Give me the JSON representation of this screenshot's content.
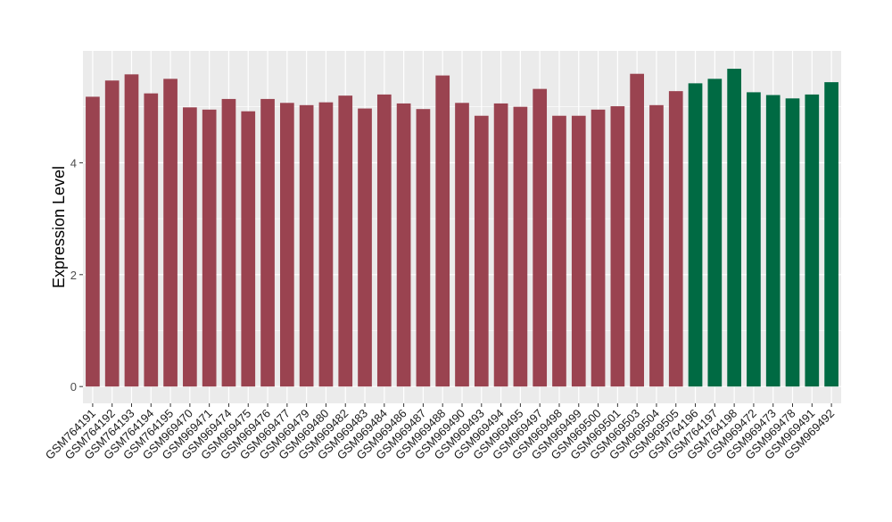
{
  "chart_data": {
    "type": "bar",
    "title": "",
    "xlabel": "",
    "ylabel": "Expression Level",
    "ylim": [
      -0.3,
      6.0
    ],
    "yticks": [
      0,
      2,
      4
    ],
    "grid": true,
    "categories": [
      "GSM764191",
      "GSM764192",
      "GSM764193",
      "GSM764194",
      "GSM764195",
      "GSM969470",
      "GSM969471",
      "GSM969474",
      "GSM969475",
      "GSM969476",
      "GSM969477",
      "GSM969479",
      "GSM969480",
      "GSM969482",
      "GSM969483",
      "GSM969484",
      "GSM969486",
      "GSM969487",
      "GSM969488",
      "GSM969490",
      "GSM969493",
      "GSM969494",
      "GSM969495",
      "GSM969497",
      "GSM969498",
      "GSM969499",
      "GSM969500",
      "GSM969501",
      "GSM969503",
      "GSM969504",
      "GSM969505",
      "GSM764196",
      "GSM764197",
      "GSM764198",
      "GSM969472",
      "GSM969473",
      "GSM969478",
      "GSM969491",
      "GSM969492"
    ],
    "values": [
      5.18,
      5.47,
      5.58,
      5.24,
      5.5,
      4.99,
      4.95,
      5.14,
      4.92,
      5.14,
      5.07,
      5.03,
      5.08,
      5.2,
      4.97,
      5.22,
      5.06,
      4.96,
      5.56,
      5.07,
      4.84,
      5.06,
      5.0,
      5.32,
      4.84,
      4.84,
      4.95,
      5.01,
      5.59,
      5.03,
      5.28,
      5.42,
      5.5,
      5.68,
      5.26,
      5.21,
      5.15,
      5.22,
      5.44
    ],
    "groups": [
      "a",
      "a",
      "a",
      "a",
      "a",
      "a",
      "a",
      "a",
      "a",
      "a",
      "a",
      "a",
      "a",
      "a",
      "a",
      "a",
      "a",
      "a",
      "a",
      "a",
      "a",
      "a",
      "a",
      "a",
      "a",
      "a",
      "a",
      "a",
      "a",
      "a",
      "a",
      "b",
      "b",
      "b",
      "b",
      "b",
      "b",
      "b",
      "b"
    ],
    "group_colors": {
      "a": "#9a4350",
      "b": "#006a43"
    },
    "panel_background": "#ebebeb",
    "gridline_color": "#ffffff"
  }
}
